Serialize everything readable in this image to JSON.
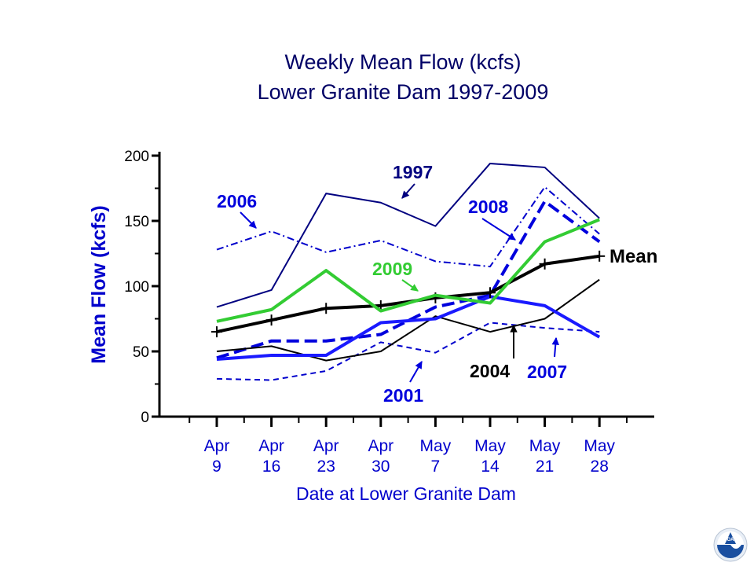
{
  "chart_data": {
    "type": "line",
    "title_lines": [
      "Weekly Mean Flow (kcfs)",
      "Lower Granite Dam 1997-2009"
    ],
    "xlabel": "Date at Lower Granite  Dam",
    "ylabel": "Mean Flow  (kcfs)",
    "ylim": [
      0,
      200
    ],
    "yticks": [
      "0",
      "50",
      "100",
      "150",
      "200"
    ],
    "grid": false,
    "categories": [
      {
        "top": "Apr",
        "bottom": "9"
      },
      {
        "top": "Apr",
        "bottom": "16"
      },
      {
        "top": "Apr",
        "bottom": "23"
      },
      {
        "top": "Apr",
        "bottom": "30"
      },
      {
        "top": "May",
        "bottom": "7"
      },
      {
        "top": "May",
        "bottom": "14"
      },
      {
        "top": "May",
        "bottom": "21"
      },
      {
        "top": "May",
        "bottom": "28"
      }
    ],
    "series": [
      {
        "key": "s1997",
        "name": "1997",
        "color": "#000080",
        "style": "solid",
        "values": [
          84,
          97,
          171,
          164,
          146,
          194,
          191,
          152
        ]
      },
      {
        "key": "s2006",
        "name": "2006",
        "color": "#0000cc",
        "style": "dashdot",
        "values": [
          128,
          142,
          126,
          135,
          119,
          115,
          176,
          140
        ]
      },
      {
        "key": "s2008",
        "name": "2008",
        "color": "#0000dd",
        "style": "longdash",
        "values": [
          45,
          58,
          58,
          63,
          84,
          93,
          165,
          134
        ]
      },
      {
        "key": "s2001",
        "name": "2001",
        "color": "#0000cc",
        "style": "dashed",
        "values": [
          29,
          28,
          35,
          57,
          49,
          72,
          68,
          65
        ]
      },
      {
        "key": "s2004",
        "name": "2004",
        "color": "#000000",
        "style": "solid",
        "values": [
          50,
          54,
          43,
          50,
          77,
          65,
          75,
          105
        ]
      },
      {
        "key": "s2007",
        "name": "2007",
        "color": "#1a1aff",
        "style": "solid-thick",
        "values": [
          44,
          47,
          47,
          72,
          75,
          92,
          85,
          61
        ]
      },
      {
        "key": "mean",
        "name": "Mean",
        "color": "#000000",
        "style": "solid-markers",
        "values": [
          65,
          74,
          83,
          85,
          91,
          95,
          117,
          123
        ]
      },
      {
        "key": "s2009",
        "name": "2009",
        "color": "#33cc33",
        "style": "solid-thick",
        "values": [
          73,
          82,
          112,
          81,
          93,
          87,
          134,
          151
        ]
      }
    ],
    "annotations": [
      {
        "key": "a1997",
        "text": "1997",
        "color": "#000080"
      },
      {
        "key": "a2006",
        "text": "2006",
        "color": "#0000dd"
      },
      {
        "key": "a2008",
        "text": "2008",
        "color": "#0000dd"
      },
      {
        "key": "a2009",
        "text": "2009",
        "color": "#33cc33"
      },
      {
        "key": "a2001",
        "text": "2001",
        "color": "#0000dd"
      },
      {
        "key": "a2004",
        "text": "2004",
        "color": "#000000"
      },
      {
        "key": "a2007",
        "text": "2007",
        "color": "#0000dd"
      },
      {
        "key": "amean",
        "text": "Mean",
        "color": "#000000"
      }
    ]
  },
  "logo": {
    "name": "noaa-logo",
    "text": "NOAA"
  }
}
